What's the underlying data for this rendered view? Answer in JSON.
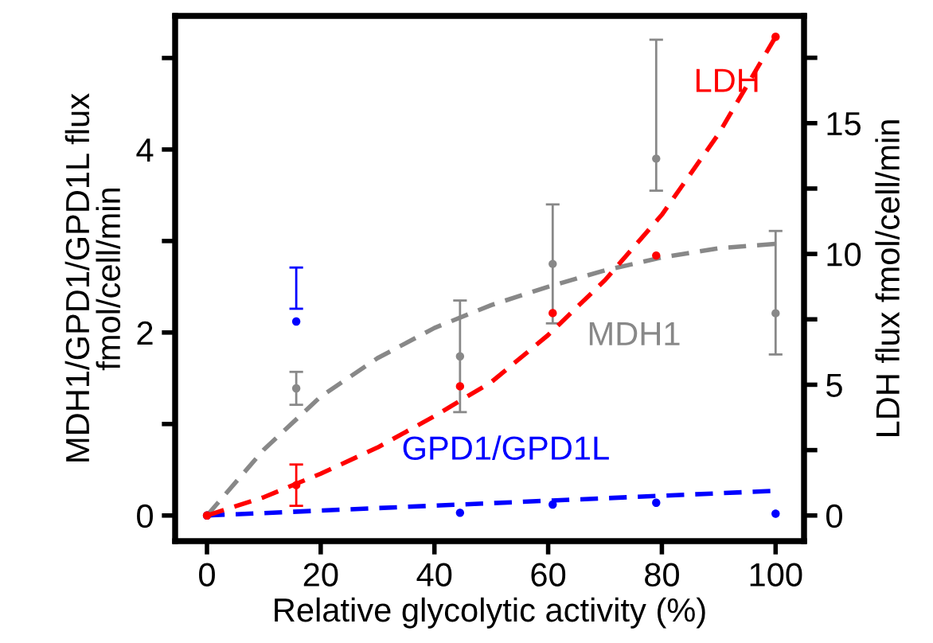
{
  "chart_data": {
    "type": "scatter",
    "xlabel": "Relative glycolytic activity (%)",
    "ylabel": "MDH1/GPD1/GPD1L flux\nfmol/cell/min",
    "y2label": "LDH flux fmol/cell/min",
    "xlim": [
      -5.6,
      105
    ],
    "xticks": [
      0,
      20,
      40,
      60,
      80,
      100
    ],
    "ylim": [
      -0.28,
      5.46
    ],
    "yticks": [
      0,
      {
        "value": 1,
        "label": null
      },
      2,
      {
        "value": 3,
        "label": null
      },
      4,
      {
        "value": 5,
        "label": null
      }
    ],
    "y2lim": [
      -0.98,
      19.1
    ],
    "y2ticks": [
      0,
      {
        "value": 2.5,
        "label": null
      },
      5,
      {
        "value": 7.5,
        "label": null
      },
      10,
      {
        "value": 12.5,
        "label": null
      },
      15,
      {
        "value": 17.5,
        "label": null
      }
    ],
    "grid": false,
    "legend": false,
    "series": [
      {
        "marker": "circle",
        "color": "#888888",
        "x": [
          15.7,
          44.5,
          60.8,
          79,
          100
        ],
        "values": [
          1.39,
          1.74,
          2.75,
          3.9,
          2.21
        ],
        "errors": [
          0.18,
          0.61,
          0.65,
          [
            3.55,
            5.2
          ],
          [
            1.76,
            3.11
          ]
        ]
      },
      {
        "marker": "circle",
        "color": "#ff0000",
        "axis": "y2",
        "x": [
          0,
          15.7,
          44.5,
          60.8,
          79,
          100
        ],
        "values": [
          0,
          1.16,
          4.94,
          7.74,
          9.94,
          18.3
        ],
        "errors": [
          null,
          0.79,
          null,
          null,
          null,
          null
        ]
      },
      {
        "marker": "circle",
        "color": "#0000ff",
        "x": [
          0,
          15.7,
          44.5,
          60.8,
          79,
          100
        ],
        "values": [
          0,
          2.12,
          0.03,
          0.12,
          0.14,
          0.02
        ],
        "errors": [
          null,
          [
            2.26,
            2.71
          ],
          null,
          null,
          null,
          null
        ]
      },
      {
        "type": "line",
        "name": "MDH1",
        "color": "#888888",
        "marker": "none",
        "line_style": "dashed",
        "x": [
          0,
          10,
          20,
          30,
          40,
          50,
          60,
          70,
          80,
          90,
          100
        ],
        "values": [
          0,
          0.72,
          1.3,
          1.72,
          2.05,
          2.3,
          2.5,
          2.68,
          2.82,
          2.92,
          2.97
        ]
      },
      {
        "type": "line",
        "name": "LDH",
        "color": "#ff0000",
        "axis": "y2",
        "marker": "none",
        "line_style": "dashed",
        "x": [
          0,
          10,
          20,
          30,
          40,
          50,
          60,
          70,
          80,
          90,
          100
        ],
        "values": [
          0,
          0.7,
          1.6,
          2.6,
          3.8,
          5.1,
          6.9,
          9.0,
          11.5,
          14.6,
          18.3
        ]
      },
      {
        "type": "line",
        "name": "GPD1/GPD1L",
        "color": "#0000ff",
        "marker": "none",
        "line_style": "dashed",
        "x": [
          0,
          100
        ],
        "values": [
          0,
          0.27
        ]
      }
    ]
  }
}
